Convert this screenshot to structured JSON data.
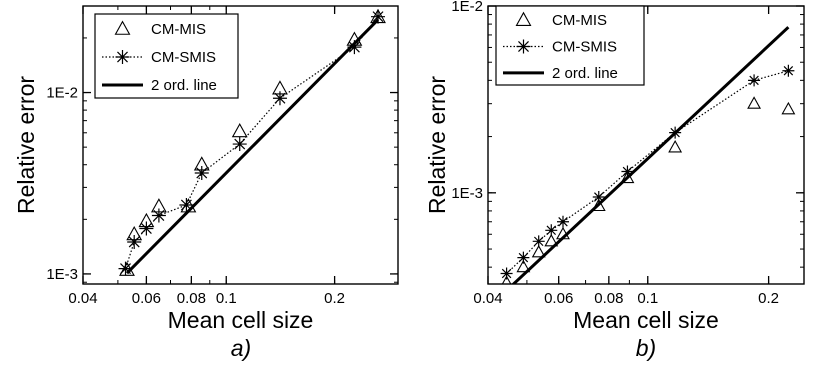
{
  "chart_data": [
    {
      "type": "scatter",
      "panel_label": "a)",
      "xlabel": "Mean cell size",
      "ylabel": "Relative error",
      "xscale": "log",
      "yscale": "log",
      "xlim": [
        0.04,
        0.3
      ],
      "ylim": [
        0.00088,
        0.03
      ],
      "xticks": [
        0.04,
        0.06,
        0.08,
        0.1,
        0.2
      ],
      "xtick_labels": [
        "0.04",
        "0.06",
        "0.08",
        "0.1",
        "0.2"
      ],
      "yticks": [
        0.001,
        0.01
      ],
      "ytick_labels": [
        "1E-3",
        "1E-2"
      ],
      "legend_position": "top-left",
      "series": [
        {
          "name": "CM-MIS",
          "marker": "triangle",
          "line": "none",
          "x": [
            0.053,
            0.0555,
            0.06,
            0.065,
            0.0785,
            0.0855,
            0.109,
            0.141,
            0.227,
            0.264
          ],
          "y": [
            0.00105,
            0.00165,
            0.00195,
            0.00235,
            0.00235,
            0.004,
            0.0061,
            0.0105,
            0.0195,
            0.026
          ]
        },
        {
          "name": "CM-SMIS",
          "marker": "asterisk",
          "line": "dotted",
          "x": [
            0.0525,
            0.0555,
            0.06,
            0.065,
            0.0775,
            0.0855,
            0.109,
            0.141,
            0.227,
            0.264
          ],
          "y": [
            0.00107,
            0.0015,
            0.00178,
            0.0021,
            0.0024,
            0.0036,
            0.0052,
            0.0093,
            0.0178,
            0.0262
          ]
        },
        {
          "name": "2 ord. line",
          "marker": "none",
          "line": "solid",
          "x": [
            0.053,
            0.264
          ],
          "y": [
            0.00101,
            0.0252
          ]
        }
      ]
    },
    {
      "type": "scatter",
      "panel_label": "b)",
      "xlabel": "Mean cell size",
      "ylabel": "Relative error",
      "xscale": "log",
      "yscale": "log",
      "xlim": [
        0.04,
        0.245
      ],
      "ylim": [
        0.000325,
        0.01
      ],
      "xticks": [
        0.04,
        0.06,
        0.08,
        0.1,
        0.2
      ],
      "xtick_labels": [
        "0.04",
        "0.06",
        "0.08",
        "0.1",
        "0.2"
      ],
      "yticks": [
        0.001,
        0.01
      ],
      "ytick_labels": [
        "1E-3",
        "1E-2"
      ],
      "legend_position": "top-left",
      "series": [
        {
          "name": "CM-MIS",
          "marker": "triangle",
          "line": "none",
          "x": [
            0.0445,
            0.049,
            0.0535,
            0.0575,
            0.0615,
            0.0755,
            0.089,
            0.117,
            0.184,
            0.224
          ],
          "y": [
            0.00033,
            0.0004,
            0.00048,
            0.00055,
            0.0006,
            0.00085,
            0.0012,
            0.00175,
            0.003,
            0.0028
          ]
        },
        {
          "name": "CM-SMIS",
          "marker": "asterisk",
          "line": "dotted",
          "x": [
            0.0445,
            0.049,
            0.0535,
            0.0575,
            0.0615,
            0.0755,
            0.089,
            0.117,
            0.184,
            0.224
          ],
          "y": [
            0.00037,
            0.00045,
            0.00055,
            0.00063,
            0.0007,
            0.00095,
            0.0013,
            0.0021,
            0.004,
            0.0045
          ]
        },
        {
          "name": "2 ord. line",
          "marker": "none",
          "line": "solid",
          "x": [
            0.0445,
            0.224
          ],
          "y": [
            0.0003,
            0.0077
          ]
        }
      ]
    }
  ]
}
